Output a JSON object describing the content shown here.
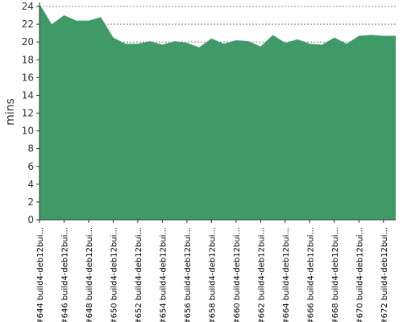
{
  "chart_data": {
    "type": "area",
    "title": "",
    "xlabel": "",
    "ylabel": "mins",
    "ylim": [
      0,
      24
    ],
    "yticks": [
      0,
      2,
      4,
      6,
      8,
      10,
      12,
      14,
      16,
      18,
      20,
      22,
      24
    ],
    "grid": true,
    "colors": {
      "fill": "#3f9a68",
      "grid": "#666666",
      "axis": "#333333"
    },
    "x_tick_labels": [
      "#644 build4-deb12bui...",
      "#646 build4-deb12bui...",
      "#648 build4-deb12bui...",
      "#650 build4-deb12bui...",
      "#652 build4-deb12bui...",
      "#654 build4-deb12bui...",
      "#656 build4-deb12bui...",
      "#658 build4-deb12bui...",
      "#660 build4-deb12bui...",
      "#662 build4-deb12bui...",
      "#664 build4-deb12bui...",
      "#666 build4-deb12bui...",
      "#668 build4-deb12bui...",
      "#670 build4-deb12bui...",
      "#672 build4-deb12bui..."
    ],
    "x": [
      644,
      645,
      646,
      647,
      648,
      649,
      650,
      651,
      652,
      653,
      654,
      655,
      656,
      657,
      658,
      659,
      660,
      661,
      662,
      663,
      664,
      665,
      666,
      667,
      668,
      669,
      670,
      671,
      672,
      673
    ],
    "values": [
      24.3,
      22.0,
      23.0,
      22.4,
      22.4,
      22.8,
      20.5,
      19.8,
      19.8,
      20.1,
      19.7,
      20.1,
      19.9,
      19.4,
      20.4,
      19.8,
      20.2,
      20.1,
      19.5,
      20.8,
      19.9,
      20.3,
      19.8,
      19.7,
      20.5,
      19.8,
      20.7,
      20.8,
      20.7,
      20.7
    ]
  }
}
